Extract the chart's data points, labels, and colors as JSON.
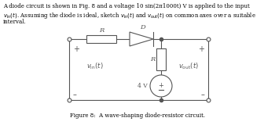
{
  "fig_width": 3.5,
  "fig_height": 1.6,
  "dpi": 100,
  "bg_color": "#ffffff",
  "text_color": "#000000",
  "col": "#555555",
  "caption": "Figure 8:  A wave-shaping diode-resistor circuit.",
  "line1": "A diode circuit is shown in Fig. 8 and a voltage 10 sin(2π1000t) V is applied to the input",
  "line2_pre": ". Assuming the diode is ideal, sketch ",
  "line3": "interval.",
  "font_text": 5.0,
  "font_caption": 5.0
}
